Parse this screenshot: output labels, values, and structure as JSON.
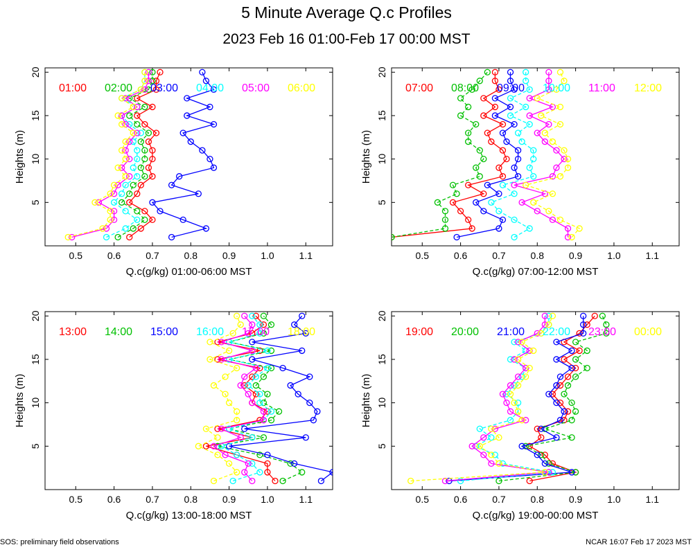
{
  "title": "5 Minute Average Q.c Profiles",
  "subtitle": "2023 Feb 16 01:00-Feb 17 00:00 MST",
  "footer_left": "SOS: preliminary field observations",
  "footer_right": "NCAR 16:07 Feb 17 2023 MST",
  "colors": [
    "#ff0000",
    "#00c000",
    "#0000ff",
    "#00ffff",
    "#ff00ff",
    "#ffff00"
  ],
  "chart_data": [
    {
      "type": "line",
      "xlabel": "Q.c(g/kg) 01:00-06:00 MST",
      "ylabel": "Heights (m)",
      "xlim": [
        0.42,
        1.17
      ],
      "ylim": [
        0,
        20.5
      ],
      "xticks": [
        0.5,
        0.6,
        0.7,
        0.8,
        0.9,
        1.0,
        1.1
      ],
      "yticks": [
        5,
        10,
        15,
        20
      ],
      "heights": [
        1,
        2,
        3,
        4,
        5,
        6,
        7,
        8,
        9,
        10,
        11,
        12,
        13,
        14,
        15,
        16,
        17,
        18,
        19,
        20
      ],
      "series": [
        {
          "name": "01:00",
          "values": [
            0.64,
            0.67,
            0.7,
            0.68,
            0.64,
            0.66,
            0.67,
            0.7,
            0.69,
            0.7,
            0.7,
            0.69,
            0.71,
            0.68,
            0.66,
            0.7,
            0.66,
            0.71,
            0.71,
            0.72
          ]
        },
        {
          "name": "02:00",
          "values": [
            0.61,
            0.65,
            0.68,
            0.66,
            0.62,
            0.64,
            0.65,
            0.68,
            0.67,
            0.68,
            0.68,
            0.67,
            0.69,
            0.66,
            0.64,
            0.68,
            0.64,
            0.69,
            0.7,
            0.7
          ]
        },
        {
          "name": "03:00",
          "values": [
            0.75,
            0.84,
            0.78,
            0.72,
            0.7,
            0.82,
            0.75,
            0.77,
            0.86,
            0.85,
            0.83,
            0.8,
            0.78,
            0.86,
            0.79,
            0.85,
            0.79,
            0.86,
            0.84,
            0.83
          ]
        },
        {
          "name": "04:00",
          "values": [
            0.58,
            0.63,
            0.66,
            0.63,
            0.6,
            0.62,
            0.63,
            0.66,
            0.65,
            0.66,
            0.66,
            0.65,
            0.67,
            0.64,
            0.62,
            0.66,
            0.62,
            0.67,
            0.68,
            0.68
          ]
        },
        {
          "name": "05:00",
          "values": [
            0.49,
            0.58,
            0.6,
            0.6,
            0.56,
            0.6,
            0.61,
            0.64,
            0.62,
            0.64,
            0.63,
            0.64,
            0.66,
            0.63,
            0.62,
            0.66,
            0.63,
            0.68,
            0.69,
            0.69
          ]
        },
        {
          "name": "06:00",
          "values": [
            0.48,
            0.57,
            0.59,
            0.59,
            0.55,
            0.59,
            0.6,
            0.63,
            0.61,
            0.63,
            0.62,
            0.63,
            0.65,
            0.62,
            0.61,
            0.65,
            0.62,
            0.67,
            0.68,
            0.68
          ]
        }
      ]
    },
    {
      "type": "line",
      "xlabel": "Q.c(g/kg) 07:00-12:00 MST",
      "ylabel": "Heights (m)",
      "xlim": [
        0.42,
        1.17
      ],
      "ylim": [
        0,
        20.5
      ],
      "xticks": [
        0.5,
        0.6,
        0.7,
        0.8,
        0.9,
        1.0,
        1.1
      ],
      "yticks": [
        5,
        10,
        15,
        20
      ],
      "heights": [
        1,
        2,
        3,
        4,
        5,
        6,
        7,
        8,
        9,
        10,
        11,
        12,
        13,
        14,
        15,
        16,
        17,
        18,
        19,
        20
      ],
      "series": [
        {
          "name": "07:00",
          "values": [
            0.42,
            0.63,
            0.62,
            0.6,
            0.58,
            0.66,
            0.62,
            0.71,
            0.7,
            0.72,
            0.71,
            0.68,
            0.67,
            0.71,
            0.66,
            0.69,
            0.66,
            0.7,
            0.69,
            0.69
          ]
        },
        {
          "name": "08:00",
          "values": [
            0.42,
            0.56,
            0.56,
            0.56,
            0.54,
            0.59,
            0.58,
            0.65,
            0.64,
            0.66,
            0.65,
            0.62,
            0.62,
            0.64,
            0.6,
            0.62,
            0.6,
            0.63,
            0.65,
            0.67
          ]
        },
        {
          "name": "09:00",
          "values": [
            0.59,
            0.7,
            0.71,
            0.66,
            0.64,
            0.7,
            0.67,
            0.75,
            0.74,
            0.75,
            0.75,
            0.72,
            0.71,
            0.74,
            0.69,
            0.73,
            0.69,
            0.74,
            0.73,
            0.73
          ]
        },
        {
          "name": "10:00",
          "values": [
            0.74,
            0.78,
            0.74,
            0.7,
            0.68,
            0.74,
            0.71,
            0.79,
            0.78,
            0.79,
            0.79,
            0.76,
            0.75,
            0.78,
            0.73,
            0.77,
            0.73,
            0.78,
            0.77,
            0.77
          ]
        },
        {
          "name": "11:00",
          "values": [
            0.88,
            0.88,
            0.84,
            0.8,
            0.76,
            0.82,
            0.74,
            0.84,
            0.85,
            0.87,
            0.85,
            0.82,
            0.8,
            0.83,
            0.78,
            0.84,
            0.78,
            0.83,
            0.83,
            0.83
          ]
        },
        {
          "name": "12:00",
          "values": [
            0.89,
            0.91,
            0.86,
            0.83,
            0.79,
            0.84,
            0.77,
            0.86,
            0.88,
            0.88,
            0.87,
            0.84,
            0.82,
            0.86,
            0.81,
            0.86,
            0.8,
            0.85,
            0.87,
            0.86
          ]
        }
      ]
    },
    {
      "type": "line",
      "xlabel": "Q.c(g/kg) 13:00-18:00 MST",
      "ylabel": "Heights (m)",
      "xlim": [
        0.42,
        1.17
      ],
      "ylim": [
        0,
        20.5
      ],
      "xticks": [
        0.5,
        0.6,
        0.7,
        0.8,
        0.9,
        1.0,
        1.1
      ],
      "yticks": [
        5,
        10,
        15,
        20
      ],
      "heights": [
        1,
        2,
        3,
        4,
        5,
        6,
        7,
        8,
        9,
        10,
        11,
        12,
        13,
        14,
        15,
        16,
        17,
        18,
        19,
        20
      ],
      "series": [
        {
          "name": "13:00",
          "values": [
            1.02,
            1.0,
            1.0,
            0.92,
            0.84,
            0.96,
            0.87,
            0.98,
            1.0,
            0.96,
            0.97,
            0.94,
            0.96,
            0.98,
            0.87,
            0.98,
            0.87,
            0.96,
            0.99,
            0.97
          ]
        },
        {
          "name": "14:00",
          "values": [
            1.04,
            1.09,
            1.06,
            0.98,
            0.87,
            0.99,
            0.9,
            1.01,
            1.03,
            0.99,
            1.0,
            0.97,
            0.99,
            1.01,
            0.9,
            1.01,
            0.9,
            0.99,
            1.01,
            0.99
          ]
        },
        {
          "name": "15:00",
          "values": [
            1.14,
            1.17,
            1.07,
            1.0,
            0.9,
            1.1,
            0.94,
            1.12,
            1.13,
            1.11,
            1.08,
            1.06,
            1.11,
            1.04,
            0.96,
            1.09,
            0.96,
            1.1,
            1.07,
            1.09
          ]
        },
        {
          "name": "16:00",
          "values": [
            0.91,
            0.98,
            0.96,
            0.92,
            0.88,
            0.96,
            0.9,
            0.99,
            1.01,
            0.98,
            0.98,
            0.95,
            0.97,
            1.0,
            0.9,
            1.0,
            0.9,
            0.98,
            0.98,
            0.96
          ]
        },
        {
          "name": "17:00",
          "values": [
            0.96,
            0.94,
            0.95,
            0.89,
            0.86,
            0.93,
            0.88,
            0.99,
            0.99,
            0.96,
            0.95,
            0.93,
            0.94,
            0.97,
            0.88,
            0.96,
            0.88,
            0.95,
            0.96,
            0.94
          ]
        },
        {
          "name": "18:00",
          "values": [
            0.86,
            0.92,
            0.9,
            0.87,
            0.82,
            0.87,
            0.84,
            0.92,
            0.92,
            0.9,
            0.89,
            0.86,
            0.89,
            0.92,
            0.85,
            0.9,
            0.85,
            0.91,
            0.93,
            0.92
          ]
        }
      ]
    },
    {
      "type": "line",
      "xlabel": "Q.c(g/kg) 19:00-00:00 MST",
      "ylabel": "Heights (m)",
      "xlim": [
        0.42,
        1.17
      ],
      "ylim": [
        0,
        20.5
      ],
      "xticks": [
        0.5,
        0.6,
        0.7,
        0.8,
        0.9,
        1.0,
        1.1
      ],
      "yticks": [
        5,
        10,
        15,
        20
      ],
      "heights": [
        1,
        2,
        3,
        4,
        5,
        6,
        7,
        8,
        9,
        10,
        11,
        12,
        13,
        14,
        15,
        16,
        17,
        18,
        19,
        20
      ],
      "series": [
        {
          "name": "19:00",
          "values": [
            0.78,
            0.9,
            0.84,
            0.82,
            0.78,
            0.81,
            0.8,
            0.87,
            0.88,
            0.86,
            0.84,
            0.86,
            0.88,
            0.9,
            0.87,
            0.91,
            0.87,
            0.91,
            0.93,
            0.95
          ]
        },
        {
          "name": "20:00",
          "values": [
            0.7,
            0.9,
            0.83,
            0.81,
            0.77,
            0.89,
            0.82,
            0.89,
            0.9,
            0.89,
            0.87,
            0.88,
            0.9,
            0.93,
            0.9,
            0.93,
            0.9,
            0.98,
            0.98,
            0.97
          ]
        },
        {
          "name": "21:00",
          "values": [
            0.57,
            0.89,
            0.82,
            0.8,
            0.76,
            0.85,
            0.81,
            0.86,
            0.87,
            0.85,
            0.83,
            0.85,
            0.86,
            0.89,
            0.85,
            0.89,
            0.85,
            0.92,
            0.92,
            0.92
          ]
        },
        {
          "name": "22:00",
          "values": [
            0.6,
            0.84,
            0.71,
            0.69,
            0.64,
            0.68,
            0.65,
            0.73,
            0.75,
            0.75,
            0.72,
            0.74,
            0.76,
            0.77,
            0.73,
            0.77,
            0.74,
            0.81,
            0.83,
            0.83
          ]
        },
        {
          "name": "23:00",
          "values": [
            0.56,
            0.83,
            0.68,
            0.66,
            0.63,
            0.66,
            0.69,
            0.77,
            0.73,
            0.72,
            0.71,
            0.73,
            0.75,
            0.77,
            0.74,
            0.78,
            0.75,
            0.8,
            0.82,
            0.82
          ]
        },
        {
          "name": "00:00",
          "values": [
            0.47,
            0.82,
            0.7,
            0.68,
            0.65,
            0.7,
            0.68,
            0.76,
            0.75,
            0.74,
            0.73,
            0.75,
            0.77,
            0.78,
            0.75,
            0.79,
            0.76,
            0.81,
            0.83,
            0.84
          ]
        }
      ]
    }
  ]
}
